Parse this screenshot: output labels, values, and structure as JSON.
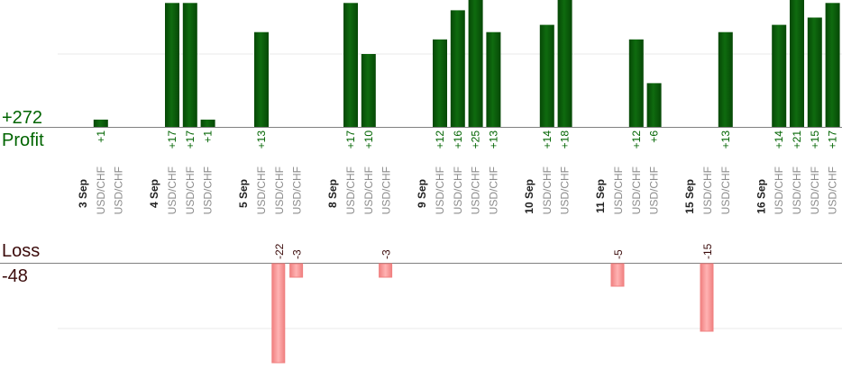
{
  "summary": {
    "profit_total": "+272",
    "profit_label": "Profit",
    "loss_label": "Loss",
    "loss_total": "-48"
  },
  "colors": {
    "profit_bar": "#0f6b0f",
    "profit_bar_edge": "#064806",
    "profit_text": "#006400",
    "loss_bar": "#ffb3b3",
    "loss_bar_edge": "#f08080",
    "loss_text": "#3a0a0a",
    "axis": "#808080",
    "grid": "#e8e8e8",
    "date_text": "#222222",
    "pair_text": "#8c8c8c"
  },
  "chart_data": {
    "type": "bar",
    "profit_ylim": [
      0,
      17
    ],
    "loss_ylim": [
      0,
      15
    ],
    "days": [
      {
        "date": "3 Sep",
        "trades": [
          {
            "pair": "USD/CHF",
            "label": "+1",
            "value": 1
          },
          {
            "pair": "USD/CHF",
            "label": "",
            "value": 0
          }
        ]
      },
      {
        "date": "4 Sep",
        "trades": [
          {
            "pair": "USD/CHF",
            "label": "+17",
            "value": 17
          },
          {
            "pair": "USD/CHF",
            "label": "+17",
            "value": 17
          },
          {
            "pair": "USD/CHF",
            "label": "+1",
            "value": 1
          }
        ]
      },
      {
        "date": "5 Sep",
        "trades": [
          {
            "pair": "USD/CHF",
            "label": "+13",
            "value": 13
          },
          {
            "pair": "USD/CHF",
            "label": "-22",
            "value": -22
          },
          {
            "pair": "USD/CHF",
            "label": "-3",
            "value": -3
          }
        ]
      },
      {
        "date": "8 Sep",
        "trades": [
          {
            "pair": "USD/CHF",
            "label": "+17",
            "value": 17
          },
          {
            "pair": "USD/CHF",
            "label": "+10",
            "value": 10
          },
          {
            "pair": "USD/CHF",
            "label": "-3",
            "value": -3
          }
        ]
      },
      {
        "date": "9 Sep",
        "trades": [
          {
            "pair": "USD/CHF",
            "label": "+12",
            "value": 12
          },
          {
            "pair": "USD/CHF",
            "label": "+16",
            "value": 16
          },
          {
            "pair": "USD/CHF",
            "label": "+25",
            "value": 25
          },
          {
            "pair": "USD/CHF",
            "label": "+13",
            "value": 13
          }
        ]
      },
      {
        "date": "10 Sep",
        "trades": [
          {
            "pair": "USD/CHF",
            "label": "+14",
            "value": 14
          },
          {
            "pair": "USD/CHF",
            "label": "+18",
            "value": 18
          }
        ]
      },
      {
        "date": "11 Sep",
        "trades": [
          {
            "pair": "USD/CHF",
            "label": "-5",
            "value": -5
          },
          {
            "pair": "USD/CHF",
            "label": "+12",
            "value": 12
          },
          {
            "pair": "USD/CHF",
            "label": "+6",
            "value": 6
          }
        ]
      },
      {
        "date": "15 Sep",
        "trades": [
          {
            "pair": "USD/CHF",
            "label": "-15",
            "value": -15
          },
          {
            "pair": "USD/CHF",
            "label": "+13",
            "value": 13
          }
        ]
      },
      {
        "date": "16 Sep",
        "trades": [
          {
            "pair": "USD/CHF",
            "label": "+14",
            "value": 14
          },
          {
            "pair": "USD/CHF",
            "label": "+21",
            "value": 21
          },
          {
            "pair": "USD/CHF",
            "label": "+15",
            "value": 15
          },
          {
            "pair": "USD/CHF",
            "label": "+17",
            "value": 17
          }
        ]
      }
    ]
  }
}
